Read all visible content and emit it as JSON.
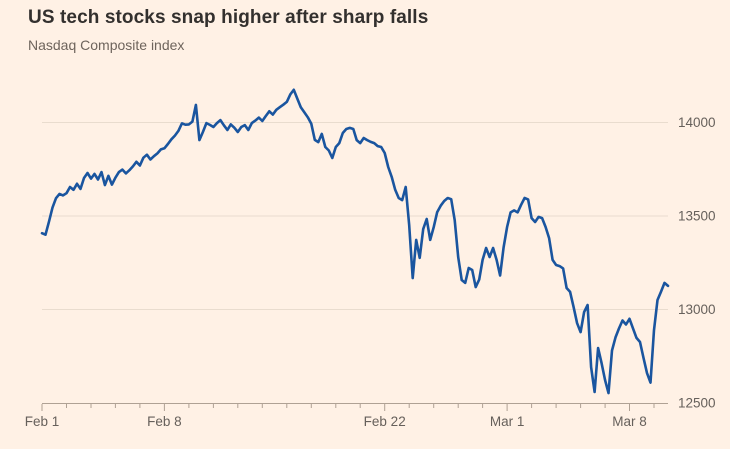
{
  "header": {
    "title": "US tech stocks snap higher after sharp falls",
    "subtitle": "Nasdaq Composite index"
  },
  "style": {
    "background": "#FFF1E5",
    "title_color": "#33302E",
    "subtitle_color": "#6E645C",
    "line_color": "#1A559F",
    "gridline_color": "#E9DCCE",
    "axis_color": "#AFA194",
    "tick_label_color": "#66605B"
  },
  "chart_data": {
    "type": "line",
    "title": "US tech stocks snap higher after sharp falls",
    "subtitle": "Nasdaq Composite index",
    "series_name": "Nasdaq Composite index (intraday)",
    "xlabel": "",
    "ylabel": "",
    "legend": "none",
    "grid": "horizontal",
    "x_unit": "trading days from Feb 1 2021, intraday samples",
    "points_per_day": 7,
    "xlim": [
      0,
      25.5714
    ],
    "ylim": [
      12500,
      14254
    ],
    "y_ticks": [
      12500,
      13000,
      13500,
      14000
    ],
    "x_tick_labels": [
      {
        "day": 0,
        "label": "Feb 1"
      },
      {
        "day": 5,
        "label": "Feb 8"
      },
      {
        "day": 14,
        "label": "Feb 22"
      },
      {
        "day": 19,
        "label": "Mar 1"
      },
      {
        "day": 24,
        "label": "Mar 8"
      }
    ],
    "days": [
      {
        "date": "Feb 1",
        "values": [
          13408,
          13400,
          13470,
          13545,
          13595,
          13618,
          13610
        ]
      },
      {
        "date": "Feb 2",
        "values": [
          13622,
          13655,
          13640,
          13672,
          13645,
          13703,
          13730
        ]
      },
      {
        "date": "Feb 3",
        "values": [
          13700,
          13725,
          13695,
          13735,
          13665,
          13715,
          13668
        ]
      },
      {
        "date": "Feb 4",
        "values": [
          13705,
          13735,
          13748,
          13728,
          13745,
          13765,
          13790
        ]
      },
      {
        "date": "Feb 5",
        "values": [
          13770,
          13812,
          13828,
          13802,
          13820,
          13835,
          13856
        ]
      },
      {
        "date": "Feb 8",
        "values": [
          13862,
          13885,
          13910,
          13930,
          13955,
          13995,
          13988
        ]
      },
      {
        "date": "Feb 9",
        "values": [
          13990,
          14005,
          14094,
          13906,
          13949,
          13997,
          13987
        ]
      },
      {
        "date": "Feb 10",
        "values": [
          13976,
          13997,
          14013,
          13985,
          13960,
          13990,
          13972
        ]
      },
      {
        "date": "Feb 11",
        "values": [
          13949,
          13976,
          13986,
          13960,
          13997,
          14010,
          14026
        ]
      },
      {
        "date": "Feb 12",
        "values": [
          14008,
          14035,
          14060,
          14042,
          14068,
          14082,
          14095
        ]
      },
      {
        "date": "Feb 16",
        "values": [
          14110,
          14150,
          14175,
          14128,
          14082,
          14055,
          14028
        ]
      },
      {
        "date": "Feb 17",
        "values": [
          13993,
          13907,
          13895,
          13939,
          13869,
          13850,
          13810
        ]
      },
      {
        "date": "Feb 18",
        "values": [
          13869,
          13890,
          13944,
          13965,
          13971,
          13965,
          13906
        ]
      },
      {
        "date": "Feb 19",
        "values": [
          13890,
          13917,
          13906,
          13896,
          13890,
          13874,
          13869
        ]
      },
      {
        "date": "Feb 22",
        "values": [
          13837,
          13762,
          13709,
          13640,
          13596,
          13585,
          13655
        ]
      },
      {
        "date": "Feb 23",
        "values": [
          13450,
          13168,
          13372,
          13276,
          13430,
          13484,
          13372
        ]
      },
      {
        "date": "Feb 24",
        "values": [
          13440,
          13521,
          13555,
          13580,
          13596,
          13590,
          13478
        ]
      },
      {
        "date": "Feb 25",
        "values": [
          13280,
          13158,
          13142,
          13222,
          13211,
          13120,
          13160
        ]
      },
      {
        "date": "Feb 26",
        "values": [
          13265,
          13329,
          13281,
          13329,
          13265,
          13182,
          13332
        ]
      },
      {
        "date": "Mar 1",
        "values": [
          13441,
          13519,
          13530,
          13519,
          13560,
          13596,
          13589
        ]
      },
      {
        "date": "Mar 2",
        "values": [
          13489,
          13468,
          13495,
          13489,
          13441,
          13382,
          13265
        ]
      },
      {
        "date": "Mar 3",
        "values": [
          13238,
          13232,
          13220,
          13115,
          13094,
          13013,
          12927
        ]
      },
      {
        "date": "Mar 4",
        "values": [
          12879,
          12986,
          13024,
          12692,
          12559,
          12794,
          12713
        ]
      },
      {
        "date": "Mar 5",
        "values": [
          12622,
          12553,
          12781,
          12851,
          12899,
          12941,
          12920
        ]
      },
      {
        "date": "Mar 8",
        "values": [
          12950,
          12899,
          12848,
          12826,
          12741,
          12660,
          12609
        ]
      },
      {
        "date": "Mar 9",
        "values": [
          12890,
          13051,
          13095,
          13142,
          13126
        ]
      }
    ]
  }
}
